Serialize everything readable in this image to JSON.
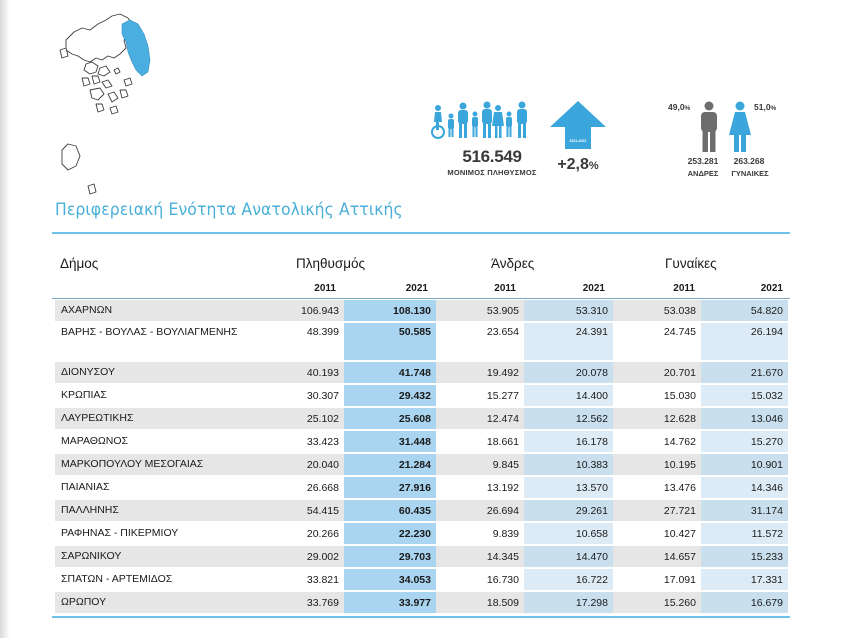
{
  "region_title": "Περιφερειακή Ενότητα Ανατολικής Αττικής",
  "summary": {
    "total_population": "516.549",
    "total_label": "ΜΟΝΙΜΟΣ ΠΛΗΘΥΣΜΟΣ",
    "change_caption": "2011-2021",
    "change_value": "+2,8",
    "change_unit": "%",
    "male_pct": "49,0",
    "female_pct": "51,0",
    "pct_unit": "%",
    "male_count": "253.281",
    "female_count": "263.268",
    "male_label": "ΑΝΔΡΕΣ",
    "female_label": "ΓΥΝΑΙΚΕΣ"
  },
  "colors": {
    "accent": "#4ab0d9",
    "rule": "#6ec2e8",
    "highlight_column": "#a9d5f0",
    "map_region": "#4aaee0",
    "icon_gray": "#6d6d6d",
    "icon_blue": "#3aa6dc"
  },
  "icons": [
    "population-group-icon",
    "up-arrow-icon",
    "man-icon",
    "woman-icon",
    "greece-map"
  ],
  "table": {
    "headers": {
      "municipality": "Δήμος",
      "population": "Πληθυσμός",
      "men": "Άνδρες",
      "women": "Γυναίκες"
    },
    "years": [
      "2011",
      "2021"
    ],
    "rows": [
      {
        "name": "ΑΧΑΡΝΩΝ",
        "pop2011": "106.943",
        "pop2021": "108.130",
        "men2011": "53.905",
        "men2021": "53.310",
        "women2011": "53.038",
        "women2021": "54.820"
      },
      {
        "name": "ΒΑΡΗΣ - ΒΟΥΛΑΣ - ΒΟΥΛΙΑΓΜΕΝΗΣ",
        "pop2011": "48.399",
        "pop2021": "50.585",
        "men2011": "23.654",
        "men2021": "24.391",
        "women2011": "24.745",
        "women2021": "26.194"
      },
      {
        "name": "ΔΙΟΝΥΣΟΥ",
        "pop2011": "40.193",
        "pop2021": "41.748",
        "men2011": "19.492",
        "men2021": "20.078",
        "women2011": "20.701",
        "women2021": "21.670"
      },
      {
        "name": "ΚΡΩΠΙΑΣ",
        "pop2011": "30.307",
        "pop2021": "29.432",
        "men2011": "15.277",
        "men2021": "14.400",
        "women2011": "15.030",
        "women2021": "15.032"
      },
      {
        "name": "ΛΑΥΡΕΩΤΙΚΗΣ",
        "pop2011": "25.102",
        "pop2021": "25.608",
        "men2011": "12.474",
        "men2021": "12.562",
        "women2011": "12.628",
        "women2021": "13.046"
      },
      {
        "name": "ΜΑΡΑΘΩΝΟΣ",
        "pop2011": "33.423",
        "pop2021": "31.448",
        "men2011": "18.661",
        "men2021": "16.178",
        "women2011": "14.762",
        "women2021": "15.270"
      },
      {
        "name": "ΜΑΡΚΟΠΟΥΛΟΥ ΜΕΣΟΓΑΙΑΣ",
        "pop2011": "20.040",
        "pop2021": "21.284",
        "men2011": "9.845",
        "men2021": "10.383",
        "women2011": "10.195",
        "women2021": "10.901"
      },
      {
        "name": "ΠΑΙΑΝΙΑΣ",
        "pop2011": "26.668",
        "pop2021": "27.916",
        "men2011": "13.192",
        "men2021": "13.570",
        "women2011": "13.476",
        "women2021": "14.346"
      },
      {
        "name": "ΠΑΛΛΗΝΗΣ",
        "pop2011": "54.415",
        "pop2021": "60.435",
        "men2011": "26.694",
        "men2021": "29.261",
        "women2011": "27.721",
        "women2021": "31.174"
      },
      {
        "name": "ΡΑΦΗΝΑΣ - ΠΙΚΕΡΜΙΟΥ",
        "pop2011": "20.266",
        "pop2021": "22.230",
        "men2011": "9.839",
        "men2021": "10.658",
        "women2011": "10.427",
        "women2021": "11.572"
      },
      {
        "name": "ΣΑΡΩΝΙΚΟΥ",
        "pop2011": "29.002",
        "pop2021": "29.703",
        "men2011": "14.345",
        "men2021": "14.470",
        "women2011": "14.657",
        "women2021": "15.233"
      },
      {
        "name": "ΣΠΑΤΩΝ - ΑΡΤΕΜΙΔΟΣ",
        "pop2011": "33.821",
        "pop2021": "34.053",
        "men2011": "16.730",
        "men2021": "16.722",
        "women2011": "17.091",
        "women2021": "17.331"
      },
      {
        "name": "ΩΡΩΠΟΥ",
        "pop2011": "33.769",
        "pop2021": "33.977",
        "men2011": "18.509",
        "men2021": "17.298",
        "women2011": "15.260",
        "women2021": "16.679"
      }
    ]
  }
}
